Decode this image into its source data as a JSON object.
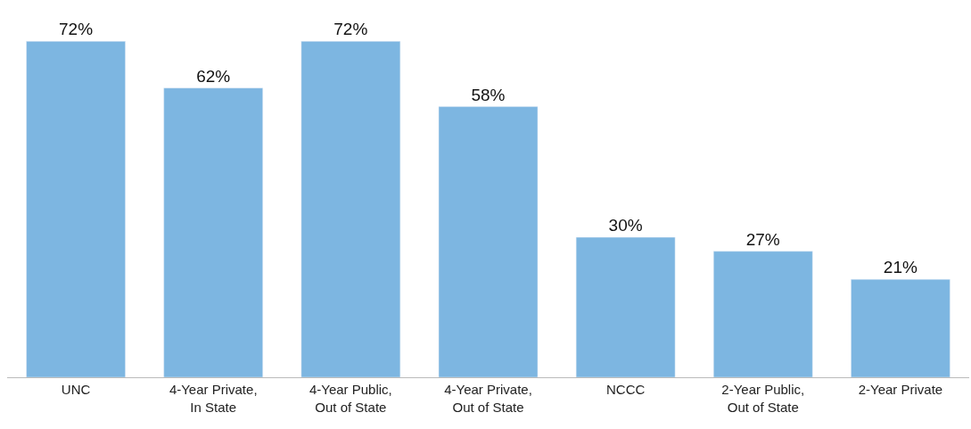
{
  "chart_data": {
    "type": "bar",
    "categories": [
      "UNC",
      "4-Year Private, In State",
      "4-Year Public, Out of State",
      "4-Year Private, Out of State",
      "NCCC",
      "2-Year Public, Out of State",
      "2-Year Private"
    ],
    "values": [
      72,
      62,
      72,
      58,
      30,
      27,
      21
    ],
    "value_labels": [
      "72%",
      "62%",
      "72%",
      "58%",
      "30%",
      "27%",
      "21%"
    ],
    "color": "#7db6e1"
  }
}
